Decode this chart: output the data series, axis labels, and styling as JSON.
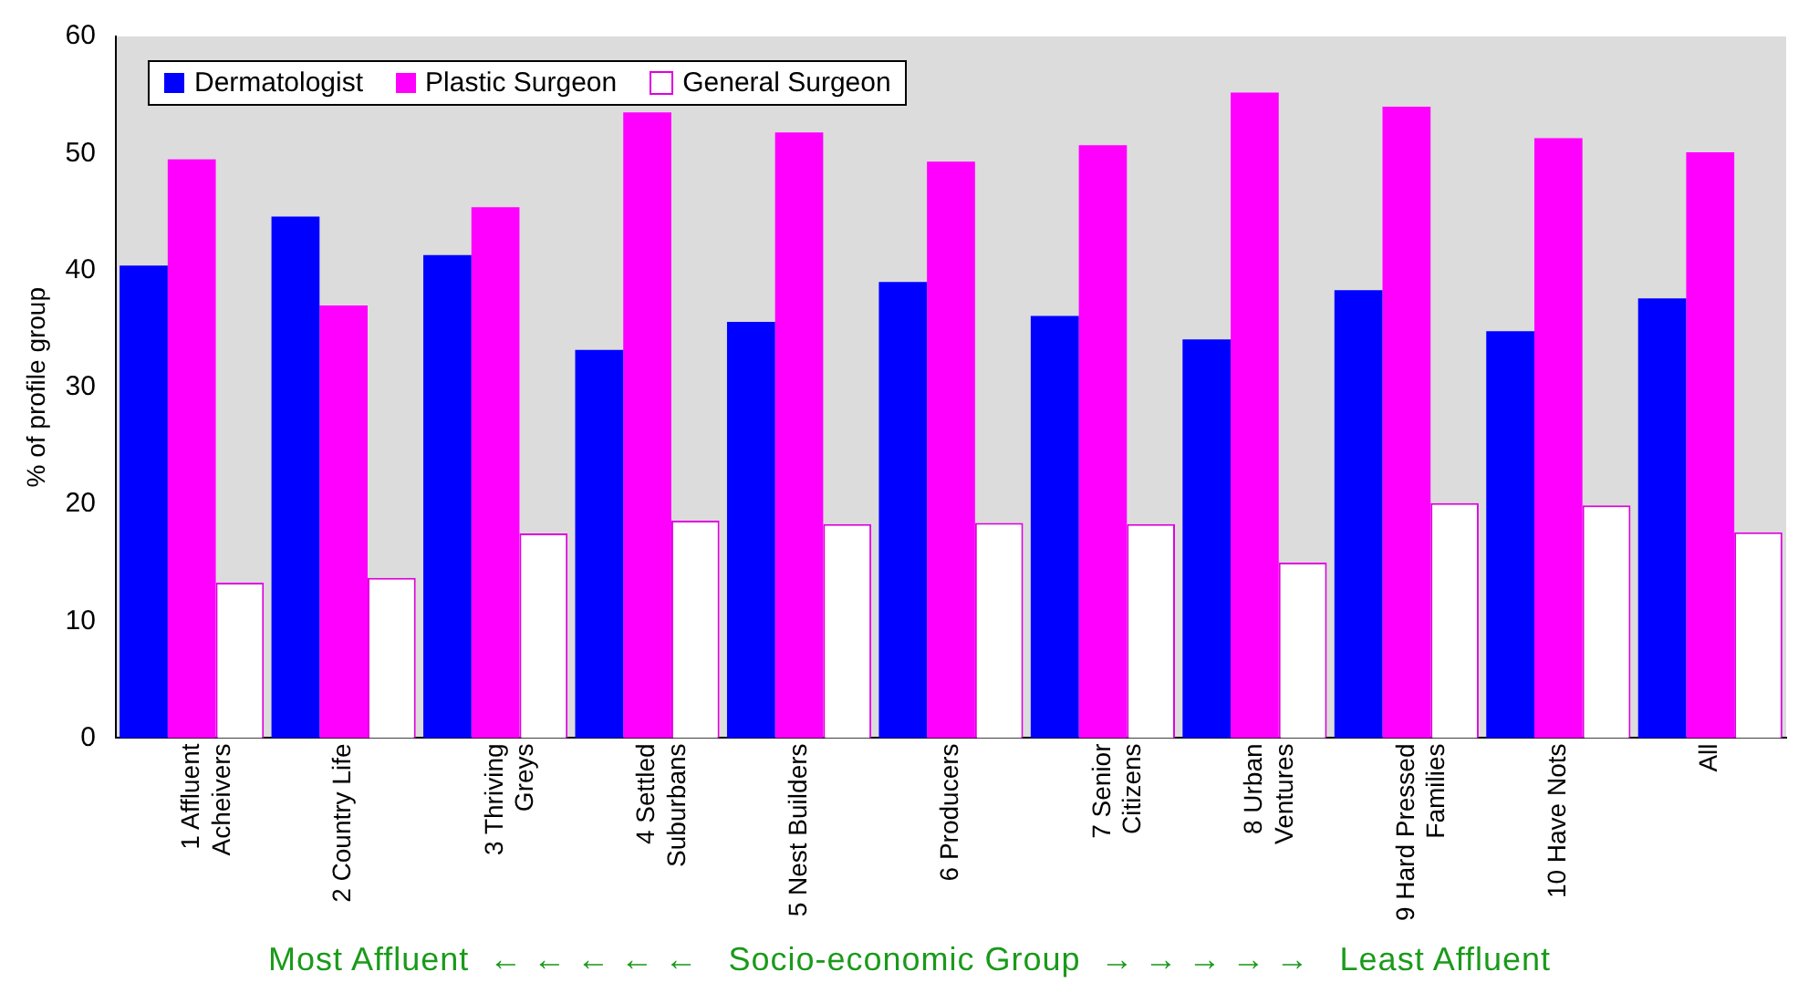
{
  "chart_data": {
    "type": "bar",
    "ylabel": "% of profile group",
    "categories": [
      "1 Affluent\nAcheivers",
      "2 Country Life",
      "3 Thriving\nGreys",
      "4 Settled\nSuburbans",
      "5 Nest Builders",
      "6 Producers",
      "7 Senior\nCitizens",
      "8 Urban\nVentures",
      "9 Hard Pressed\nFamilies",
      "10 Have Nots",
      "All"
    ],
    "series": [
      {
        "name": "Dermatologist",
        "color": "#0000ff",
        "values": [
          40.4,
          44.6,
          41.3,
          33.2,
          35.6,
          39.0,
          36.1,
          34.1,
          38.3,
          34.8,
          37.6
        ]
      },
      {
        "name": "Plastic Surgeon",
        "color": "#ff00ff",
        "values": [
          49.5,
          37.0,
          45.4,
          53.5,
          51.8,
          49.3,
          50.7,
          55.2,
          54.0,
          51.3,
          50.1
        ]
      },
      {
        "name": "General Surgeon",
        "color": "#ffffff",
        "values": [
          13.3,
          13.7,
          17.5,
          18.6,
          18.3,
          18.4,
          18.3,
          15.0,
          20.1,
          19.9,
          17.6
        ]
      }
    ],
    "ylim": [
      0,
      60
    ],
    "yticks": [
      0,
      10,
      20,
      30,
      40,
      50,
      60
    ],
    "grid": false,
    "legend": "top left",
    "annotations": [
      "Most Affluent  ← ← ← ← ←   Socio-economic Group  → → → → →   Least Affluent"
    ]
  }
}
